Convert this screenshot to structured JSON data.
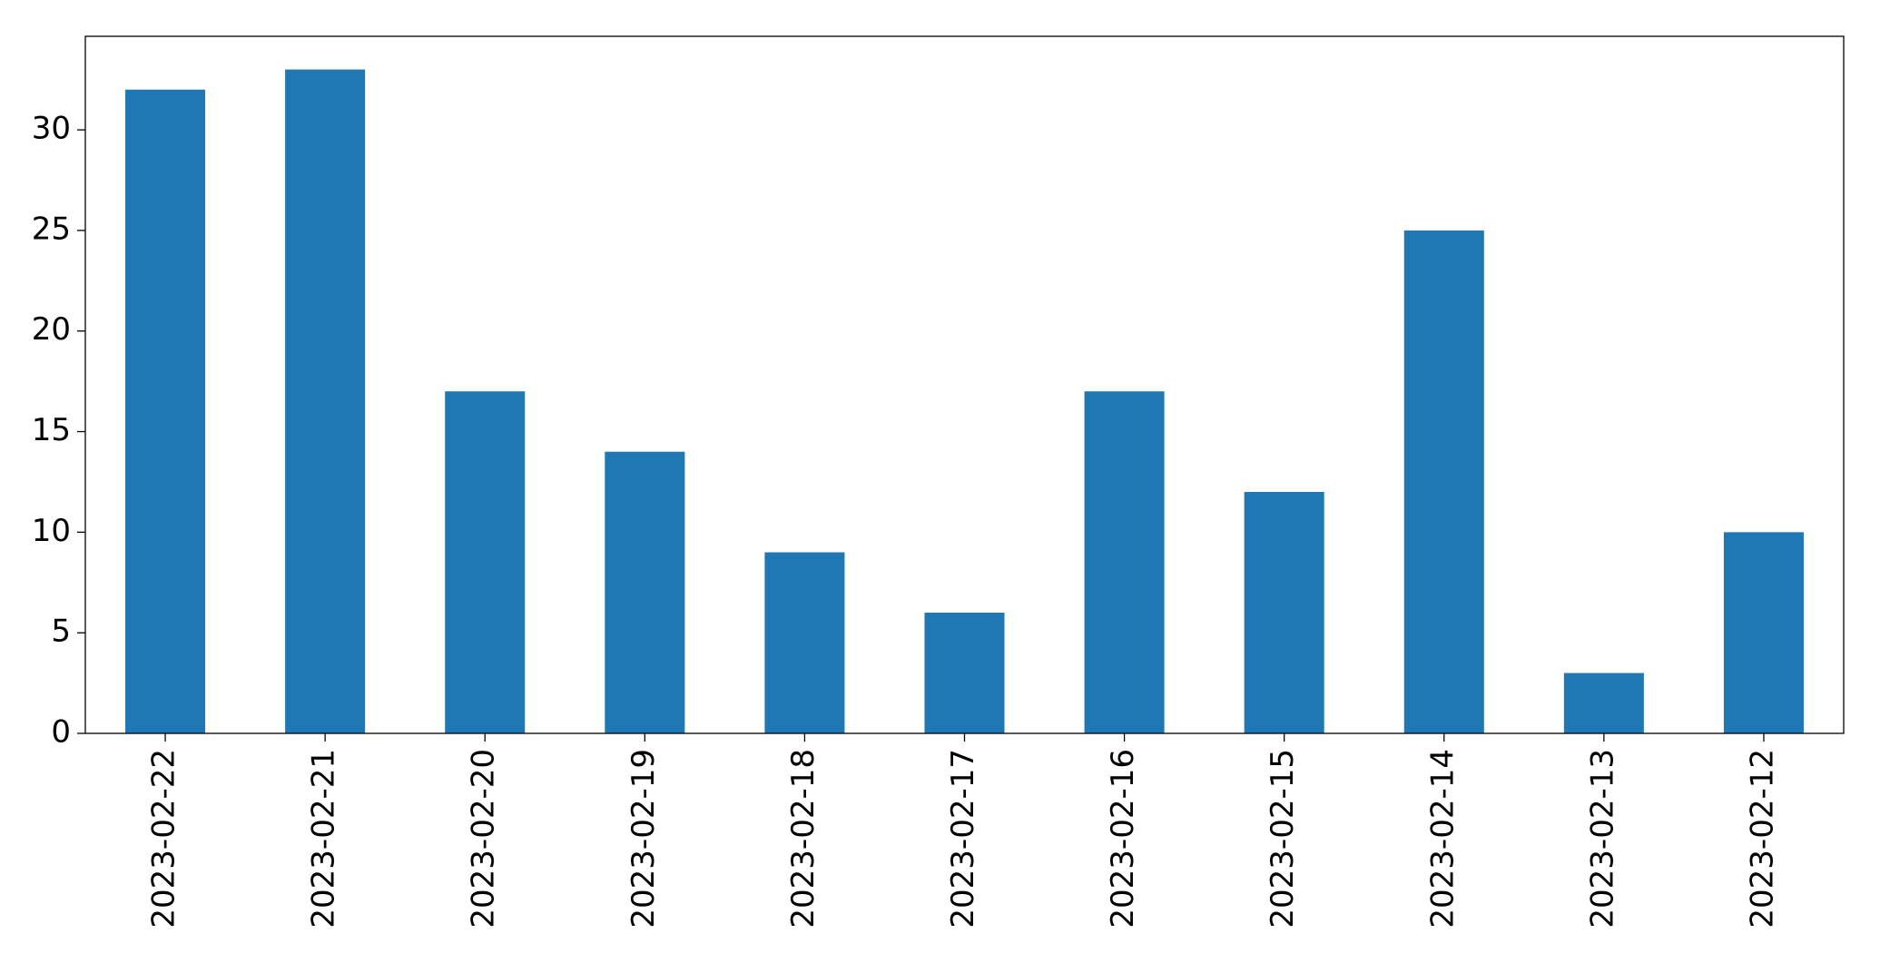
{
  "chart_data": {
    "type": "bar",
    "categories": [
      "2023-02-22",
      "2023-02-21",
      "2023-02-20",
      "2023-02-19",
      "2023-02-18",
      "2023-02-17",
      "2023-02-16",
      "2023-02-15",
      "2023-02-14",
      "2023-02-13",
      "2023-02-12"
    ],
    "values": [
      32,
      33,
      17,
      14,
      9,
      6,
      17,
      12,
      25,
      3,
      10
    ],
    "color": "#1f77b4",
    "ylim": [
      0,
      34.65
    ],
    "yticks": [
      0,
      5,
      10,
      15,
      20,
      25,
      30
    ],
    "grid": false
  }
}
